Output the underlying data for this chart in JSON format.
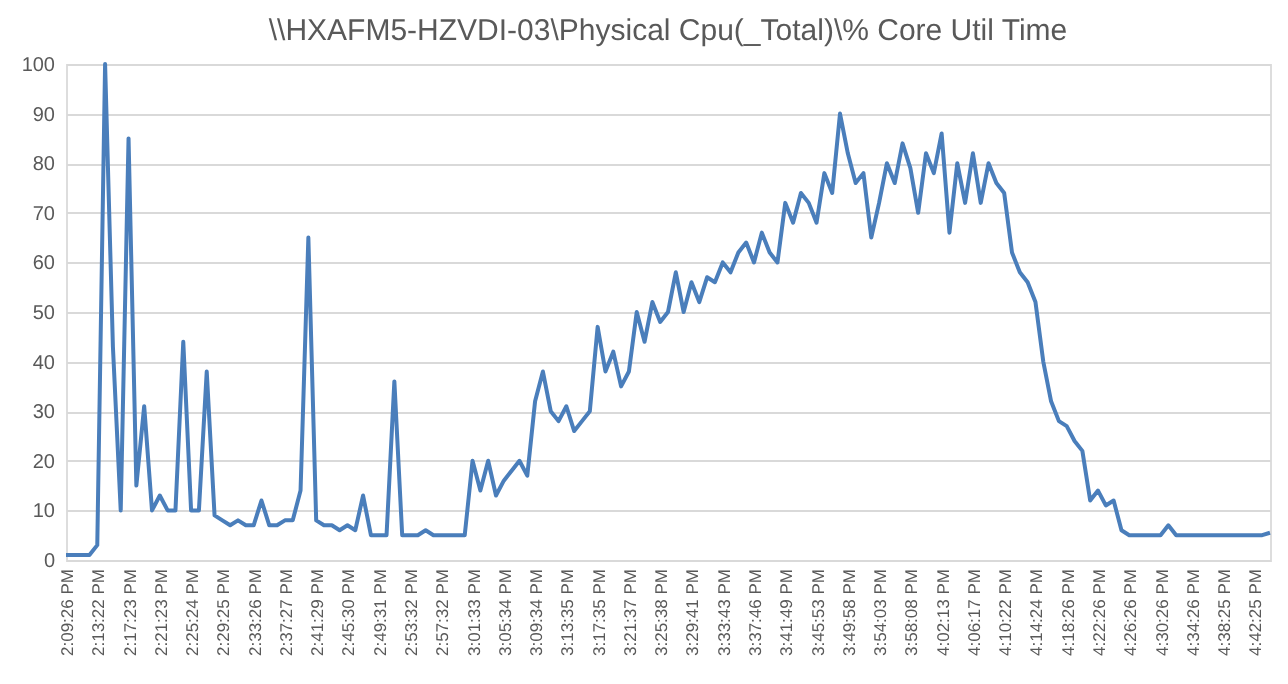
{
  "chart_data": {
    "type": "line",
    "title": "\\\\HXAFM5-HZVDI-03\\Physical Cpu(_Total)\\% Core Util Time",
    "categories": [
      "2:09:26 PM",
      null,
      null,
      null,
      "2:13:22 PM",
      null,
      null,
      null,
      "2:17:23 PM",
      null,
      null,
      null,
      "2:21:23 PM",
      null,
      null,
      null,
      "2:25:24 PM",
      null,
      null,
      null,
      "2:29:25 PM",
      null,
      null,
      null,
      "2:33:26 PM",
      null,
      null,
      null,
      "2:37:27 PM",
      null,
      null,
      null,
      "2:41:29 PM",
      null,
      null,
      null,
      "2:45:30 PM",
      null,
      null,
      null,
      "2:49:31 PM",
      null,
      null,
      null,
      "2:53:32 PM",
      null,
      null,
      null,
      "2:57:32 PM",
      null,
      null,
      null,
      "3:01:33 PM",
      null,
      null,
      null,
      "3:05:34 PM",
      null,
      null,
      null,
      "3:09:34 PM",
      null,
      null,
      null,
      "3:13:35 PM",
      null,
      null,
      null,
      "3:17:35 PM",
      null,
      null,
      null,
      "3:21:37 PM",
      null,
      null,
      null,
      "3:25:38 PM",
      null,
      null,
      null,
      "3:29:41 PM",
      null,
      null,
      null,
      "3:33:43 PM",
      null,
      null,
      null,
      "3:37:46 PM",
      null,
      null,
      null,
      "3:41:49 PM",
      null,
      null,
      null,
      "3:45:53 PM",
      null,
      null,
      null,
      "3:49:58 PM",
      null,
      null,
      null,
      "3:54:03 PM",
      null,
      null,
      null,
      "3:58:08 PM",
      null,
      null,
      null,
      "4:02:13 PM",
      null,
      null,
      null,
      "4:06:17 PM",
      null,
      null,
      null,
      "4:10:22 PM",
      null,
      null,
      null,
      "4:14:24 PM",
      null,
      null,
      null,
      "4:18:26 PM",
      null,
      null,
      null,
      "4:22:26 PM",
      null,
      null,
      null,
      "4:26:26 PM",
      null,
      null,
      null,
      "4:30:26 PM",
      null,
      null,
      null,
      "4:34:26 PM",
      null,
      null,
      null,
      "4:38:25 PM",
      null,
      null,
      null,
      "4:42:25 PM",
      null,
      null
    ],
    "series": [
      {
        "color": "#4a7ebb",
        "values": [
          1,
          1,
          1,
          1,
          3,
          100,
          43,
          10,
          85,
          15,
          31,
          10,
          13,
          10,
          10,
          44,
          10,
          10,
          38,
          9,
          8,
          7,
          8,
          7,
          7,
          12,
          7,
          7,
          8,
          8,
          14,
          65,
          8,
          7,
          7,
          6,
          7,
          6,
          13,
          5,
          5,
          5,
          36,
          5,
          5,
          5,
          6,
          5,
          5,
          5,
          5,
          5,
          20,
          14,
          20,
          13,
          16,
          18,
          20,
          17,
          32,
          38,
          30,
          28,
          31,
          26,
          28,
          30,
          47,
          38,
          42,
          35,
          38,
          50,
          44,
          52,
          48,
          50,
          58,
          50,
          56,
          52,
          57,
          56,
          60,
          58,
          62,
          64,
          60,
          66,
          62,
          60,
          72,
          68,
          74,
          72,
          68,
          78,
          74,
          90,
          82,
          76,
          78,
          65,
          72,
          80,
          76,
          84,
          79,
          70,
          82,
          78,
          86,
          66,
          80,
          72,
          82,
          72,
          80,
          76,
          74,
          62,
          58,
          56,
          52,
          40,
          32,
          28,
          27,
          24,
          22,
          12,
          14,
          11,
          12,
          6,
          5,
          5,
          5,
          5,
          5,
          7,
          5,
          5,
          5,
          5,
          5,
          5,
          5,
          5,
          5,
          5,
          5,
          5,
          5.5
        ]
      }
    ],
    "ylim": [
      0,
      100
    ],
    "yticks": [
      0,
      10,
      20,
      30,
      40,
      50,
      60,
      70,
      80,
      90,
      100
    ],
    "grid": "y"
  }
}
